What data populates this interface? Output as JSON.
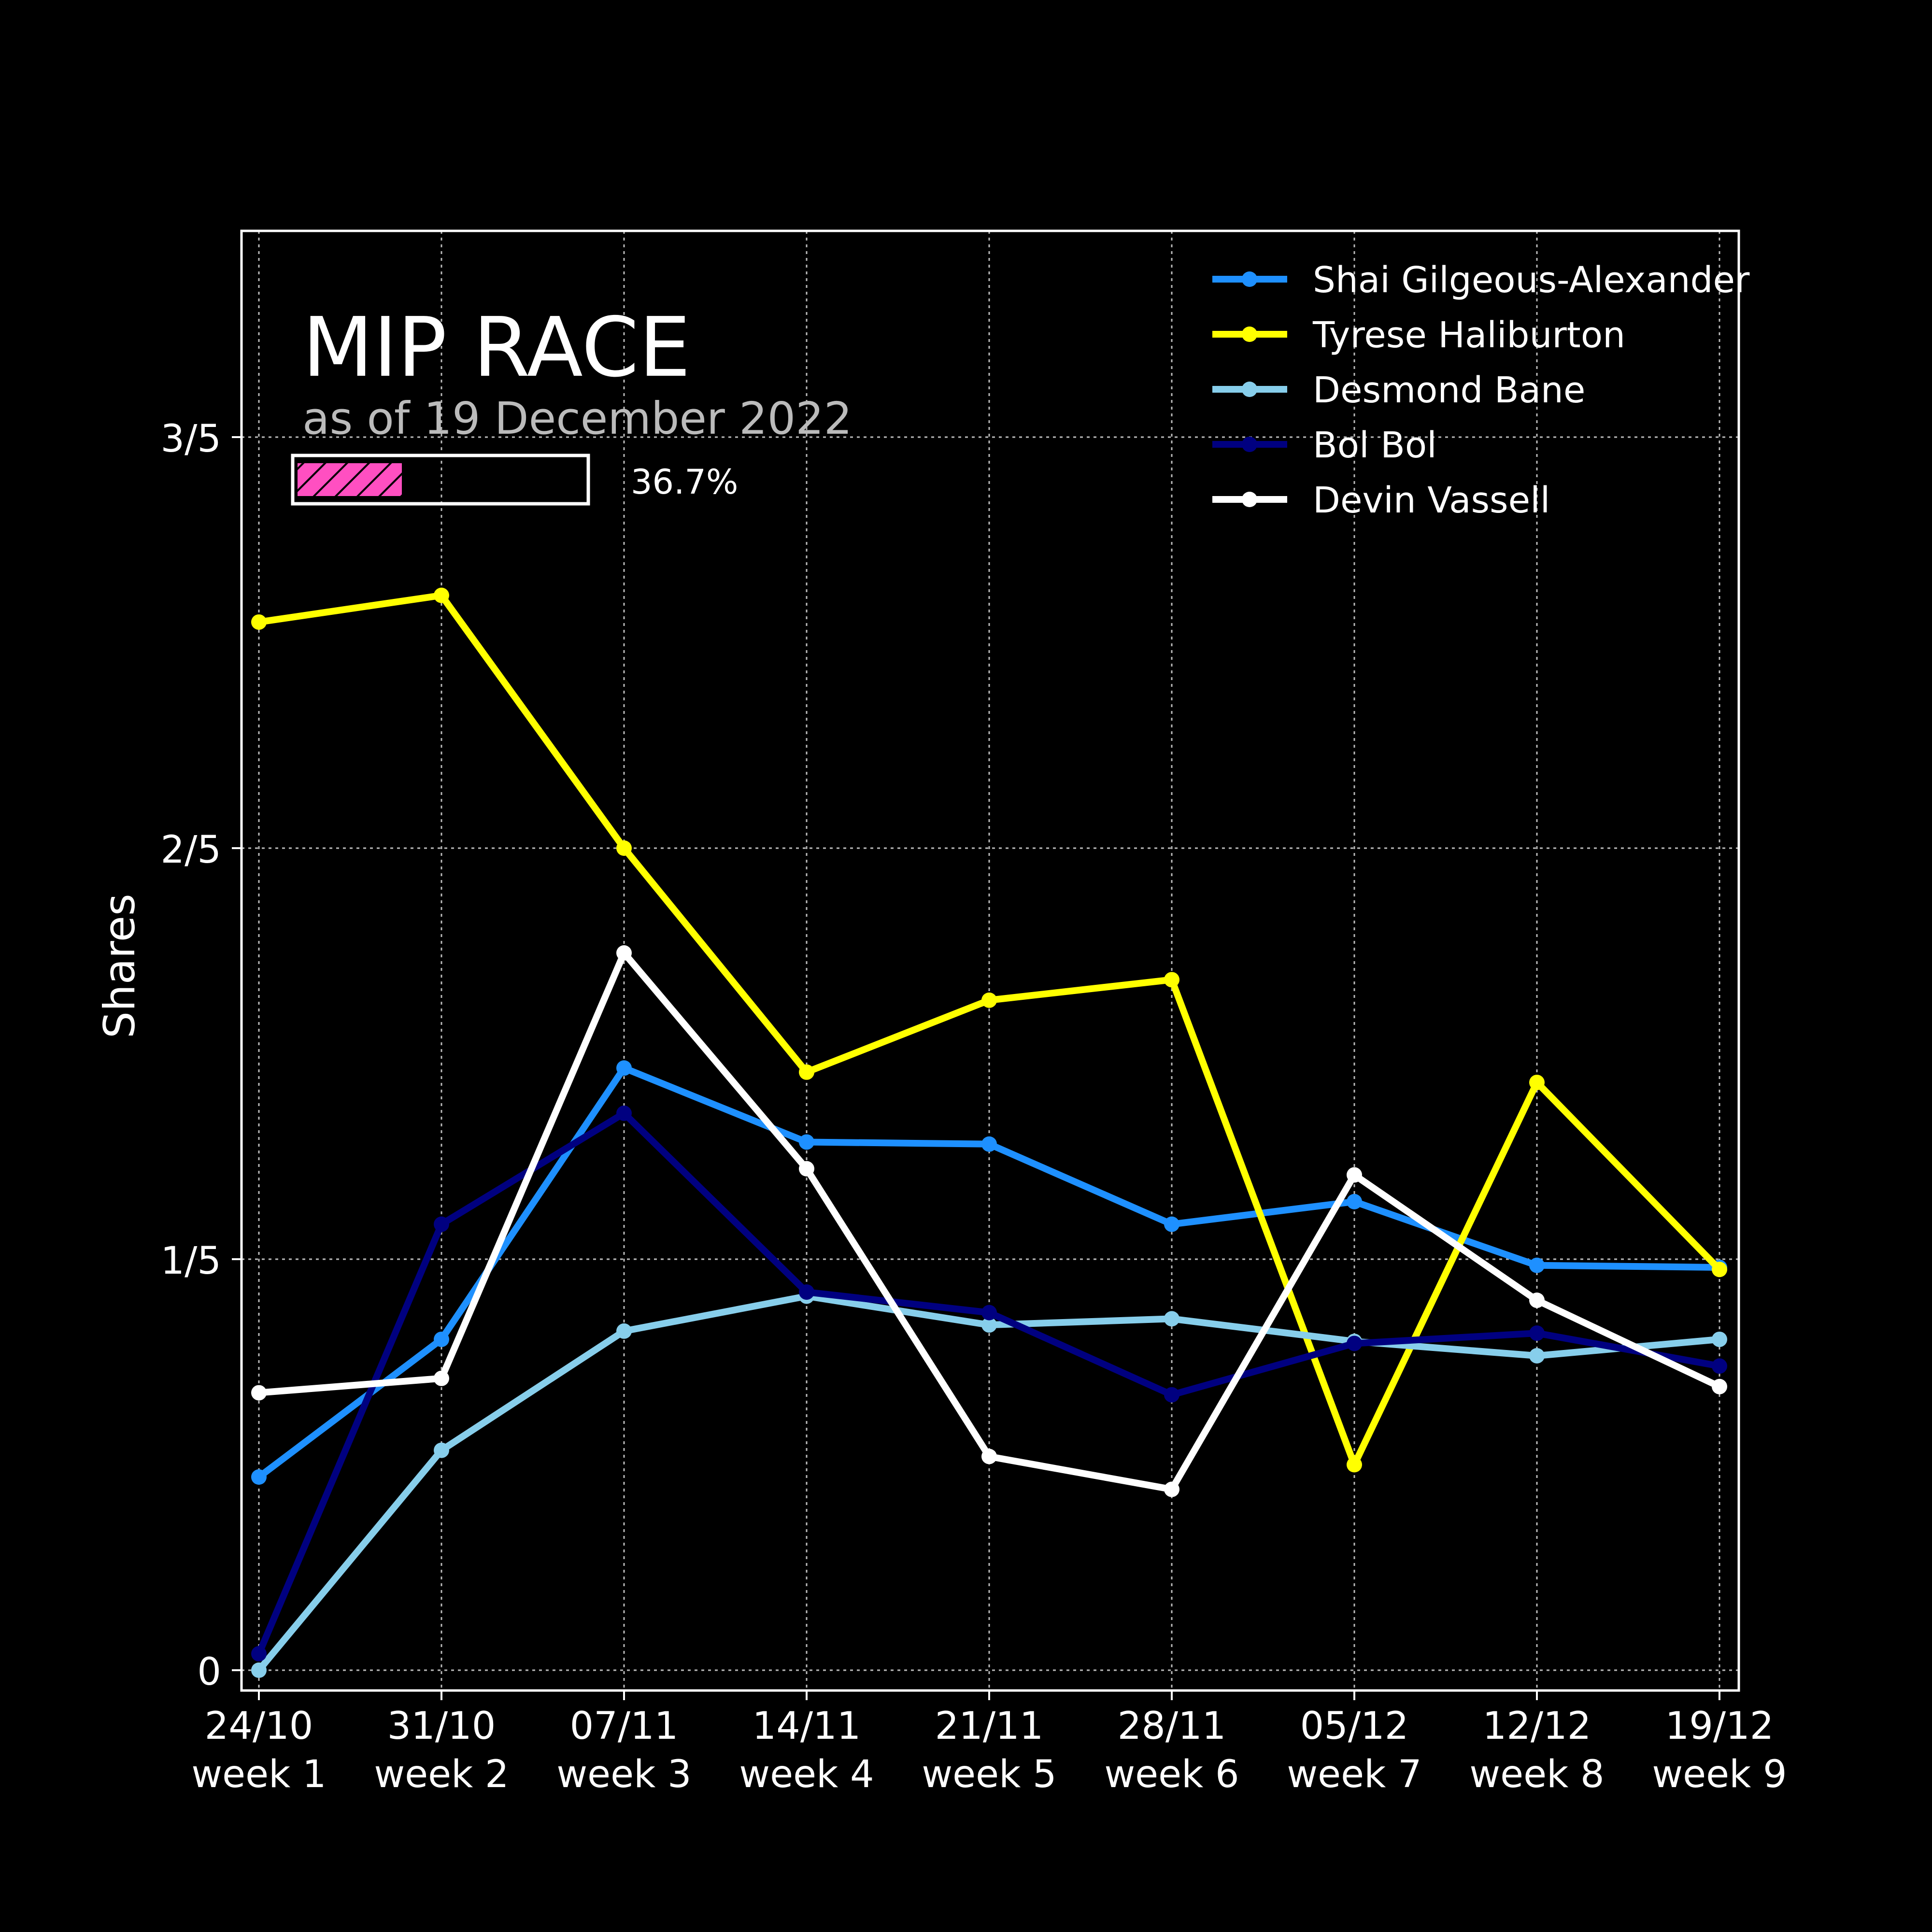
{
  "chart_data": {
    "type": "line",
    "title": "MIP RACE",
    "subtitle": "as of 19 December 2022",
    "progress": {
      "value": 0.367,
      "label": "36.7%",
      "color": "#FF4FC1"
    },
    "ylabel": "Shares",
    "xlabel": "",
    "ylim": [
      0,
      0.65
    ],
    "yticks": [
      {
        "value": 0,
        "label": "0"
      },
      {
        "value": 0.2,
        "label": "1/5"
      },
      {
        "value": 0.4,
        "label": "2/5"
      },
      {
        "value": 0.6,
        "label": "3/5"
      }
    ],
    "categories": [
      [
        "24/10",
        "week 1"
      ],
      [
        "31/10",
        "week 2"
      ],
      [
        "07/11",
        "week 3"
      ],
      [
        "14/11",
        "week 4"
      ],
      [
        "21/11",
        "week 5"
      ],
      [
        "28/11",
        "week 6"
      ],
      [
        "05/12",
        "week 7"
      ],
      [
        "12/12",
        "week 8"
      ],
      [
        "19/12",
        "week 9"
      ]
    ],
    "grid": true,
    "legend_position": "top-right",
    "series": [
      {
        "name": "Shai Gilgeous-Alexander",
        "color": "#1E90FF",
        "values": [
          0.094,
          0.161,
          0.293,
          0.257,
          0.256,
          0.217,
          0.228,
          0.197,
          0.196
        ]
      },
      {
        "name": "Tyrese Haliburton",
        "color": "#FFFF00",
        "values": [
          0.51,
          0.523,
          0.4,
          0.291,
          0.326,
          0.336,
          0.1,
          0.286,
          0.195
        ]
      },
      {
        "name": "Desmond Bane",
        "color": "#87CEEB",
        "values": [
          0.0,
          0.107,
          0.165,
          0.182,
          0.168,
          0.171,
          0.16,
          0.153,
          0.161
        ]
      },
      {
        "name": "Bol Bol",
        "color": "#000080",
        "values": [
          0.008,
          0.217,
          0.271,
          0.184,
          0.174,
          0.134,
          0.159,
          0.164,
          0.148
        ]
      },
      {
        "name": "Devin Vassell",
        "color": "#FFFFFF",
        "values": [
          0.135,
          0.142,
          0.349,
          0.244,
          0.104,
          0.088,
          0.241,
          0.18,
          0.138
        ]
      }
    ]
  }
}
